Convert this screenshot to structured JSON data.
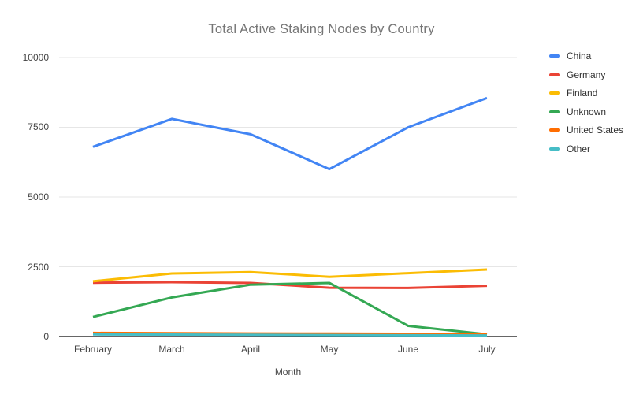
{
  "title": "Total Active Staking Nodes by Country",
  "chart_data": {
    "type": "line",
    "title": "Total Active Staking Nodes by Country",
    "xlabel": "Month",
    "ylabel": "",
    "categories": [
      "February",
      "March",
      "April",
      "May",
      "June",
      "July"
    ],
    "series": [
      {
        "name": "China",
        "color": "#4285F4",
        "values": [
          6800,
          7800,
          7250,
          6000,
          7500,
          8550
        ]
      },
      {
        "name": "Germany",
        "color": "#EA4335",
        "values": [
          1930,
          1950,
          1920,
          1750,
          1740,
          1820
        ]
      },
      {
        "name": "Finland",
        "color": "#FBBC04",
        "values": [
          1980,
          2260,
          2310,
          2140,
          2270,
          2400
        ]
      },
      {
        "name": "Unknown",
        "color": "#34A853",
        "values": [
          700,
          1400,
          1860,
          1920,
          380,
          80
        ]
      },
      {
        "name": "United States",
        "color": "#FF6D01",
        "values": [
          130,
          120,
          110,
          105,
          100,
          95
        ]
      },
      {
        "name": "Other",
        "color": "#46BDC6",
        "values": [
          75,
          70,
          65,
          55,
          45,
          40
        ]
      }
    ],
    "ylim": [
      0,
      10000
    ],
    "yticks": [
      0,
      2500,
      5000,
      7500,
      10000
    ],
    "grid": true,
    "legend_position": "right",
    "axis_color": "#333333",
    "gridline_color": "#e6e6e6"
  }
}
